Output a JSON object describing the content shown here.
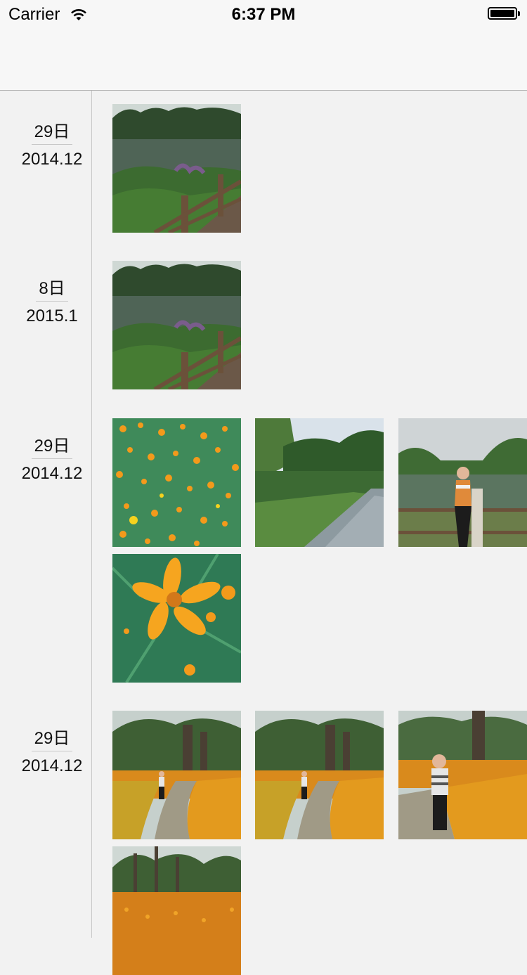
{
  "status_bar": {
    "carrier": "Carrier",
    "time": "6:37 PM",
    "wifi_icon": "wifi-icon",
    "battery_icon": "battery-icon"
  },
  "sections": [
    {
      "day": "29日",
      "year_month": "2014.12",
      "photos": [
        "pond-fence"
      ]
    },
    {
      "day": "8日",
      "year_month": "2015.1",
      "photos": [
        "pond-fence"
      ]
    },
    {
      "day": "29日",
      "year_month": "2014.12",
      "photos": [
        "orange-flower-field",
        "park-path",
        "woman-by-pond",
        "orange-cosmos-closeup"
      ]
    },
    {
      "day": "29日",
      "year_month": "2014.12",
      "photos": [
        "woman-in-flower-path",
        "woman-in-flower-path",
        "woman-standing-flowers",
        "flower-field-trees"
      ]
    }
  ],
  "colors": {
    "background": "#f2f2f2",
    "bar": "#f7f7f7",
    "divider": "#c8c8c8"
  }
}
